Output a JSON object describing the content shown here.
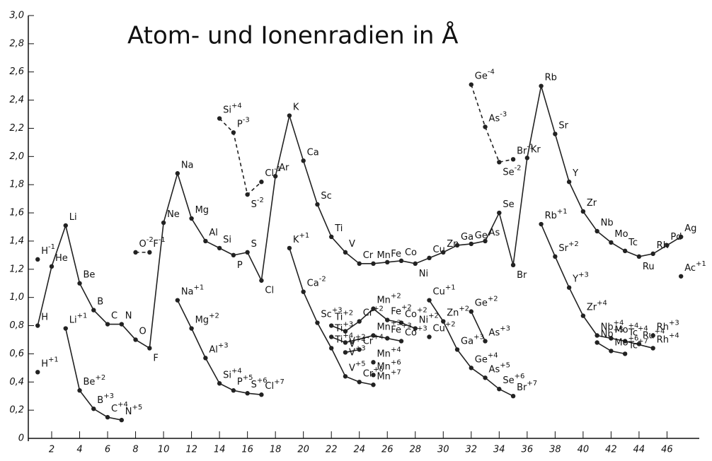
{
  "chart_data": {
    "type": "line",
    "title": "Atom- und Ionenradien in Å",
    "xlim": [
      0.33,
      47.8
    ],
    "ylim": [
      0,
      3.0
    ],
    "xticks": [
      2,
      4,
      6,
      8,
      10,
      12,
      14,
      16,
      18,
      20,
      22,
      24,
      26,
      28,
      30,
      32,
      34,
      36,
      38,
      40,
      42,
      44,
      46
    ],
    "yticks": [
      0,
      {
        "value": 0.2,
        "label": "0,2"
      },
      {
        "value": 0.4,
        "label": "0,4"
      },
      {
        "value": 0.6,
        "label": "0,6"
      },
      {
        "value": 0.8,
        "label": "0,8"
      },
      {
        "value": 1.0,
        "label": "1,0"
      },
      {
        "value": 1.2,
        "label": "1,2"
      },
      {
        "value": 1.4,
        "label": "1,4"
      },
      {
        "value": 1.6,
        "label": "1,6"
      },
      {
        "value": 1.8,
        "label": "1,8"
      },
      {
        "value": 2.0,
        "label": "2,0"
      },
      {
        "value": 2.2,
        "label": "2,2"
      },
      {
        "value": 2.4,
        "label": "2,4"
      },
      {
        "value": 2.6,
        "label": "2,6"
      },
      {
        "value": 2.8,
        "label": "2,8"
      },
      {
        "value": 3.0,
        "label": "3,0"
      }
    ],
    "color": "#222",
    "series": [
      {
        "x": [
          1,
          2,
          3,
          4,
          5,
          6,
          7,
          8,
          9,
          10,
          11,
          12,
          13,
          14,
          15,
          16,
          17,
          18,
          19,
          20,
          21,
          22,
          23,
          24,
          25,
          26,
          27,
          28,
          29,
          30,
          31,
          32,
          33,
          34,
          35,
          36,
          37,
          38,
          39,
          40,
          41,
          42,
          43,
          44,
          45,
          46,
          47
        ],
        "values": [
          0.8,
          1.22,
          1.51,
          1.1,
          0.91,
          0.81,
          0.81,
          0.7,
          0.64,
          1.53,
          1.88,
          1.56,
          1.4,
          1.35,
          1.3,
          1.32,
          1.12,
          1.86,
          2.29,
          1.97,
          1.66,
          1.43,
          1.32,
          1.24,
          1.24,
          1.25,
          1.26,
          1.24,
          1.28,
          1.32,
          1.37,
          1.38,
          1.4,
          1.6,
          1.23,
          1.99,
          2.5,
          2.16,
          1.82,
          1.61,
          1.47,
          1.39,
          1.33,
          1.29,
          1.31,
          1.37,
          1.43
        ],
        "labels": [
          "H",
          "He",
          "Li",
          "Be",
          "B",
          "C",
          "N",
          "O",
          "F",
          "Ne",
          "Na",
          "Mg",
          "Al",
          "Si",
          "P",
          "S",
          "Cl",
          "Ar",
          "K",
          "Ca",
          "Sc",
          "Ti",
          "V",
          "Cr",
          "Mn",
          "Fe",
          "Co",
          "Ni",
          "Cu",
          "Zn",
          "Ga",
          "Ge",
          "As",
          "Se",
          "Br",
          "Kr",
          "Rb",
          "Sr",
          "Y",
          "Zr",
          "Nb",
          "Mo",
          "Tc",
          "Ru",
          "Rh",
          "Pd",
          "Ag"
        ]
      },
      {
        "x": [
          1
        ],
        "values": [
          1.27
        ],
        "labels": [
          "H"
        ],
        "charges": [
          "-1"
        ],
        "dashed": true
      },
      {
        "x": [
          8,
          9
        ],
        "values": [
          1.32,
          1.32
        ],
        "labels": [
          "O",
          "F"
        ],
        "charges": [
          "-2",
          "-1"
        ],
        "dashed": true
      },
      {
        "x": [
          14,
          15,
          16,
          17
        ],
        "values": [
          2.27,
          2.17,
          1.73,
          1.82
        ],
        "labels": [
          "Si",
          "P",
          "S",
          "Cl"
        ],
        "charges": [
          "+4",
          "-3",
          "-2",
          "-1"
        ],
        "dashed": true
      },
      {
        "x": [
          32,
          33,
          34,
          35
        ],
        "values": [
          2.51,
          2.21,
          1.96,
          1.98
        ],
        "labels": [
          "Ge",
          "As",
          "Se",
          "Br"
        ],
        "charges": [
          "-4",
          "-3",
          "-2",
          "-1"
        ],
        "dashed": true
      },
      {
        "x": [
          1
        ],
        "values": [
          0.47
        ],
        "labels": [
          "H"
        ],
        "charges": [
          "+1"
        ]
      },
      {
        "x": [
          3,
          4,
          5,
          6,
          7
        ],
        "values": [
          0.78,
          0.34,
          0.21,
          0.15,
          0.13
        ],
        "labels": [
          "Li",
          "Be",
          "B",
          "C",
          "N"
        ],
        "charges": [
          "+1",
          "+2",
          "+3",
          "+4",
          "+5"
        ]
      },
      {
        "x": [
          11,
          12,
          13,
          14,
          15,
          16,
          17
        ],
        "values": [
          0.98,
          0.78,
          0.57,
          0.39,
          0.34,
          0.32,
          0.31
        ],
        "labels": [
          "Na",
          "Mg",
          "Al",
          "Si",
          "P",
          "S",
          "Cl"
        ],
        "charges": [
          "+1",
          "+2",
          "+3",
          "+4",
          "+5",
          "+6",
          "+7"
        ]
      },
      {
        "x": [
          19,
          20,
          21,
          22,
          23,
          24,
          25
        ],
        "values": [
          1.35,
          1.04,
          0.82,
          0.64,
          0.44,
          0.4,
          0.38
        ],
        "labels": [
          "K",
          "Ca",
          "Sc",
          "Ti",
          "V",
          "Cr",
          "Mn"
        ],
        "charges": [
          "+1",
          "-2",
          "+3",
          "+4",
          "+5",
          "+6",
          "+7"
        ]
      },
      {
        "x": [
          22,
          23,
          24,
          25,
          26,
          27,
          28
        ],
        "values": [
          0.8,
          0.76,
          0.83,
          0.92,
          0.84,
          0.82,
          0.78
        ],
        "labels": [
          "Ti",
          "V",
          "Cr",
          "Mn",
          "Fe",
          "Co",
          "Ni"
        ],
        "charges": [
          "+2",
          "+2",
          "+2",
          "+2",
          "+2",
          "+2",
          "+2"
        ]
      },
      {
        "x": [
          22,
          23,
          25,
          26,
          27
        ],
        "values": [
          0.72,
          0.68,
          0.73,
          0.71,
          0.69
        ],
        "labels": [
          "Ti",
          "V",
          "Mn",
          "Fe",
          "Co"
        ],
        "charges": [
          "+3",
          "+3",
          "+3",
          "+3",
          "+3"
        ]
      },
      {
        "x": [
          23,
          24
        ],
        "values": [
          0.61,
          0.63
        ],
        "labels": [
          "V",
          "Cr"
        ],
        "charges": [
          "+4",
          "+4"
        ]
      },
      {
        "x": [
          25
        ],
        "values": [
          0.54
        ],
        "labels": [
          "Mn"
        ],
        "charges": [
          "+4"
        ]
      },
      {
        "x": [
          25
        ],
        "values": [
          0.45
        ],
        "labels": [
          "Mn"
        ],
        "charges": [
          "+6"
        ]
      },
      {
        "x": [
          29,
          30,
          31,
          32,
          33,
          34,
          35
        ],
        "values": [
          0.98,
          0.83,
          0.63,
          0.5,
          0.43,
          0.35,
          0.3
        ],
        "labels": [
          "Cu",
          "Zn",
          "Ga",
          "Ge",
          "As",
          "Se",
          "Br"
        ],
        "charges": [
          "+1",
          "+2",
          "+3",
          "+4",
          "+5",
          "+6",
          "+7"
        ]
      },
      {
        "x": [
          29
        ],
        "values": [
          0.72
        ],
        "labels": [
          "Cu"
        ],
        "charges": [
          "+2"
        ]
      },
      {
        "x": [
          32,
          33
        ],
        "values": [
          0.9,
          0.69
        ],
        "labels": [
          "Ge",
          "As"
        ],
        "charges": [
          "+2",
          "+3"
        ]
      },
      {
        "x": [
          37,
          38,
          39,
          40,
          41,
          42,
          43,
          45
        ],
        "values": [
          1.52,
          1.29,
          1.07,
          0.87,
          0.73,
          0.71,
          0.69,
          0.64
        ],
        "labels": [
          "Rb",
          "Sr",
          "Y",
          "Zr",
          "Nb",
          "Mo",
          "Tc",
          "Rh"
        ],
        "charges": [
          "+1",
          "+2",
          "+3",
          "+4",
          "+4",
          "+4",
          "+4",
          "+4"
        ]
      },
      {
        "x": [
          41,
          42,
          43
        ],
        "values": [
          0.68,
          0.62,
          0.6
        ],
        "labels": [
          "Nb",
          "Mo",
          "Tc"
        ],
        "charges": [
          "+5",
          "+6",
          "+7"
        ]
      },
      {
        "x": [
          44
        ],
        "values": [
          0.67
        ],
        "labels": [
          "Ru"
        ],
        "charges": [
          "+4"
        ]
      },
      {
        "x": [
          45
        ],
        "values": [
          0.73
        ],
        "labels": [
          "Rh"
        ],
        "charges": [
          "+3"
        ]
      },
      {
        "x": [
          47
        ],
        "values": [
          1.15
        ],
        "labels": [
          "Ac"
        ],
        "charges": [
          "+1"
        ]
      }
    ]
  }
}
